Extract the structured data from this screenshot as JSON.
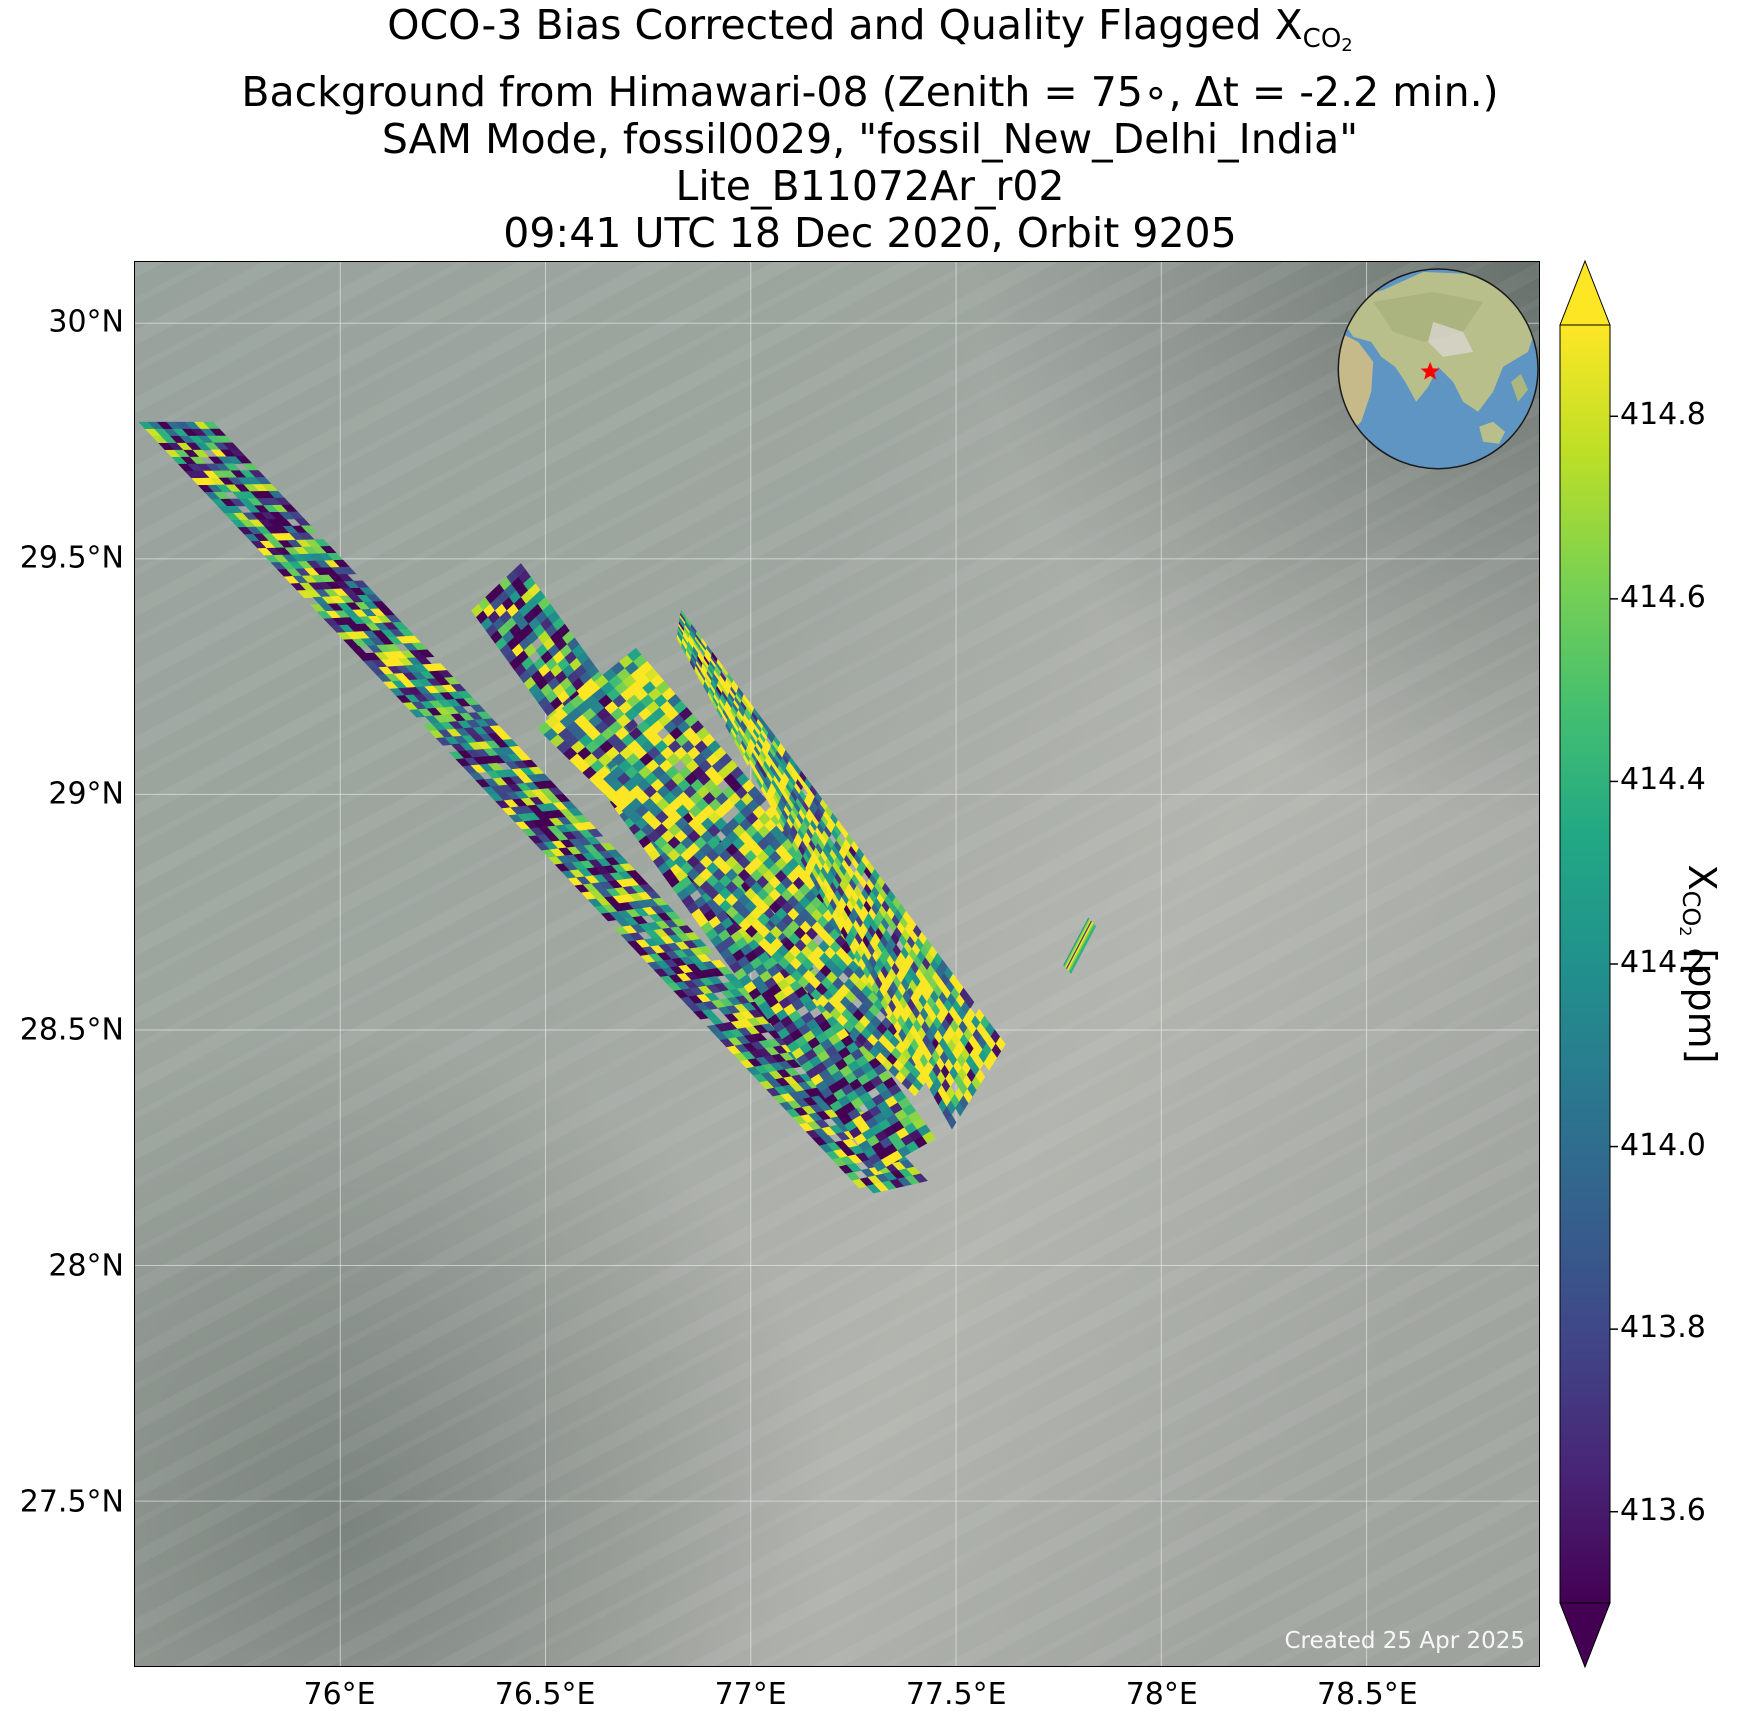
{
  "title": {
    "line1_prefix": "OCO-3 Bias Corrected and Quality Flagged X",
    "line1_sub": "CO",
    "line1_subsub": "2",
    "line2": "Background from Himawari-08 (Zenith = 75∘, Δt = -2.2 min.)",
    "line3": "SAM Mode, fossil0029, \"fossil_New_Delhi_India\"",
    "line4": "Lite_B11072Ar_r02",
    "line5": "09:41 UTC 18 Dec 2020, Orbit 9205"
  },
  "map": {
    "lon_range": [
      75.5,
      78.92
    ],
    "lat_range": [
      27.15,
      30.13
    ],
    "xticks": [
      {
        "value": 76.0,
        "label": "76°E"
      },
      {
        "value": 76.5,
        "label": "76.5°E"
      },
      {
        "value": 77.0,
        "label": "77°E"
      },
      {
        "value": 77.5,
        "label": "77.5°E"
      },
      {
        "value": 78.0,
        "label": "78°E"
      },
      {
        "value": 78.5,
        "label": "78.5°E"
      }
    ],
    "yticks": [
      {
        "value": 30.0,
        "label": "30°N"
      },
      {
        "value": 29.5,
        "label": "29.5°N"
      },
      {
        "value": 29.0,
        "label": "29°N"
      },
      {
        "value": 28.5,
        "label": "28.5°N"
      },
      {
        "value": 28.0,
        "label": "28°N"
      },
      {
        "value": 27.5,
        "label": "27.5°N"
      }
    ],
    "grid": true,
    "background": "Himawari-08 true color imagery, mostly cloud/haze covered",
    "colors": {
      "background_haze": "#9aa39d",
      "background_dark": "#6f7873",
      "background_light": "#b7b8b3",
      "gridline": "#e8ebe8"
    },
    "created_text": "Created 25 Apr 2025",
    "inset_globe": {
      "center_label": "New Delhi target",
      "marker": "red-star",
      "marker_color": "#ff0000",
      "ocean_color": "#5e95c2",
      "land_color": "#b9bf8a"
    }
  },
  "chart_data": {
    "type": "heatmap",
    "variable": "XCO2",
    "units": "ppm",
    "colormap": "viridis",
    "vmin": 413.5,
    "vmax": 414.9,
    "extend": "both",
    "colorbar_ticks": [
      413.6,
      413.8,
      414.0,
      414.2,
      414.4,
      414.6,
      414.8
    ],
    "colorbar_tick_labels": [
      "413.6",
      "413.8",
      "414.0",
      "414.2",
      "414.4",
      "414.6",
      "414.8"
    ],
    "colorbar_label_prefix": "X",
    "colorbar_label_sub": "CO",
    "colorbar_label_subsub": "2",
    "colorbar_label_suffix": " [ppm]",
    "swaths": [
      {
        "corners": [
          [
            75.51,
            29.79
          ],
          [
            75.69,
            29.79
          ],
          [
            77.43,
            28.18
          ],
          [
            77.28,
            28.15
          ]
        ],
        "cols": 8,
        "rows": 110,
        "mean": 414.12
      },
      {
        "corners": [
          [
            76.32,
            29.39
          ],
          [
            76.44,
            29.49
          ],
          [
            77.45,
            28.27
          ],
          [
            77.31,
            28.2
          ]
        ],
        "cols": 7,
        "rows": 85,
        "mean": 414.1
      },
      {
        "corners": [
          [
            76.48,
            29.14
          ],
          [
            76.72,
            29.31
          ],
          [
            77.52,
            28.5
          ],
          [
            77.4,
            28.36
          ]
        ],
        "cols": 12,
        "rows": 58,
        "mean": 414.45
      },
      {
        "corners": [
          [
            76.82,
            29.33
          ],
          [
            76.83,
            29.39
          ],
          [
            77.62,
            28.47
          ],
          [
            77.49,
            28.29
          ]
        ],
        "cols": 13,
        "rows": 62,
        "mean": 414.55
      },
      {
        "corners": [
          [
            77.76,
            28.64
          ],
          [
            77.82,
            28.74
          ],
          [
            77.84,
            28.72
          ],
          [
            77.78,
            28.62
          ]
        ],
        "cols": 1,
        "rows": 9,
        "mean": 414.4
      }
    ]
  }
}
